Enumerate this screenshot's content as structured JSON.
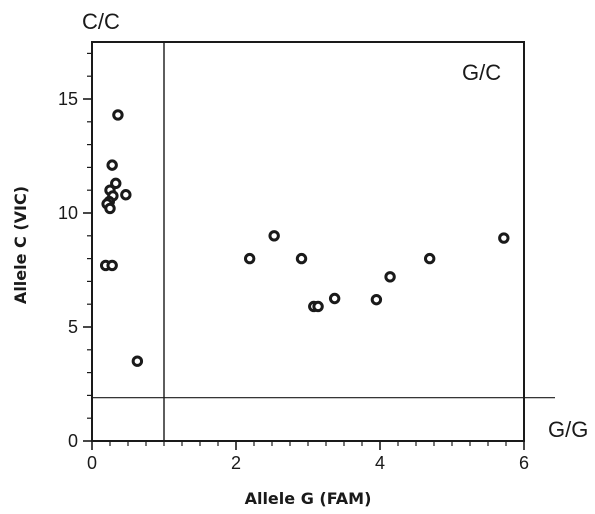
{
  "chart_data": {
    "type": "scatter",
    "xlabel": "Allele G (FAM)",
    "ylabel": "Allele C (VIC)",
    "xlim": [
      0,
      6
    ],
    "ylim": [
      0,
      17.5
    ],
    "x_ticks": [
      "0",
      "2",
      "4",
      "6"
    ],
    "y_ticks": [
      "0",
      "5",
      "10",
      "15"
    ],
    "x_tick_values": [
      0,
      2,
      4,
      6
    ],
    "y_tick_values": [
      0,
      5,
      10,
      15
    ],
    "x_minor_step": 0.25,
    "y_minor_step": 1,
    "grid": false,
    "region_labels": {
      "cc": "C/C",
      "gc": "G/C",
      "gg": "G/G"
    },
    "threshold_lines": {
      "x": 1.0,
      "y": 1.9
    },
    "marker_color": "#1a1a1a",
    "points": [
      {
        "x": 0.36,
        "y": 14.3
      },
      {
        "x": 0.28,
        "y": 12.1
      },
      {
        "x": 0.33,
        "y": 11.3
      },
      {
        "x": 0.25,
        "y": 11.0
      },
      {
        "x": 0.29,
        "y": 10.75
      },
      {
        "x": 0.47,
        "y": 10.8
      },
      {
        "x": 0.24,
        "y": 10.5
      },
      {
        "x": 0.21,
        "y": 10.4
      },
      {
        "x": 0.25,
        "y": 10.2
      },
      {
        "x": 0.19,
        "y": 7.7
      },
      {
        "x": 0.28,
        "y": 7.7
      },
      {
        "x": 0.63,
        "y": 3.5
      },
      {
        "x": 2.19,
        "y": 8.0
      },
      {
        "x": 2.53,
        "y": 9.0
      },
      {
        "x": 2.91,
        "y": 8.0
      },
      {
        "x": 3.08,
        "y": 5.9
      },
      {
        "x": 3.14,
        "y": 5.9
      },
      {
        "x": 3.37,
        "y": 6.25
      },
      {
        "x": 3.95,
        "y": 6.2
      },
      {
        "x": 4.14,
        "y": 7.2
      },
      {
        "x": 4.69,
        "y": 8.0
      },
      {
        "x": 5.72,
        "y": 8.9
      }
    ]
  }
}
